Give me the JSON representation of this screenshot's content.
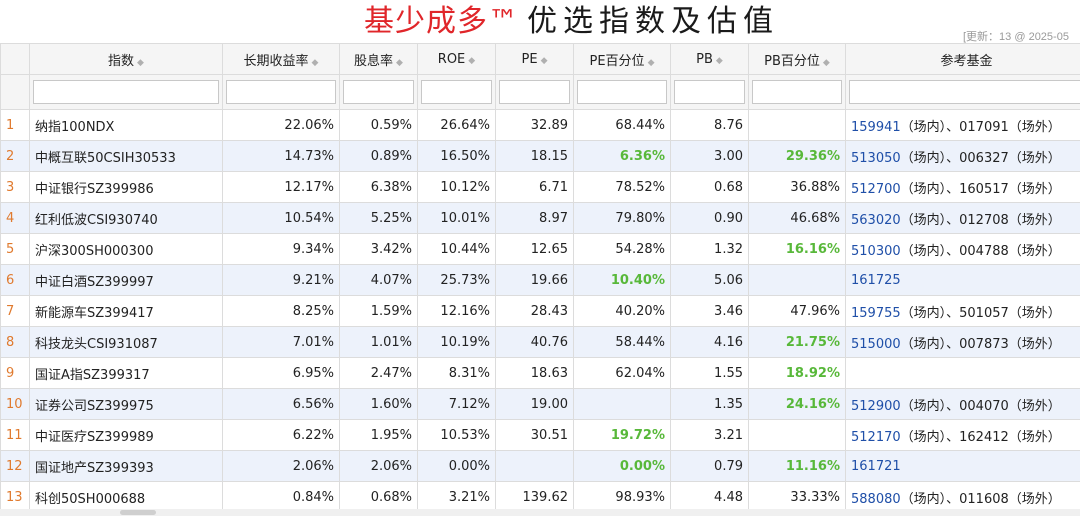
{
  "header": {
    "title_brand": "基少成多™",
    "title_main": "优选指数及估值",
    "update_note": "[更新：13 @ 2025-05"
  },
  "columns": [
    {
      "key": "index",
      "label": "指数"
    },
    {
      "key": "return",
      "label": "长期收益率"
    },
    {
      "key": "dividend",
      "label": "股息率"
    },
    {
      "key": "roe",
      "label": "ROE"
    },
    {
      "key": "pe",
      "label": "PE"
    },
    {
      "key": "pe_pct",
      "label": "PE百分位"
    },
    {
      "key": "pb",
      "label": "PB"
    },
    {
      "key": "pb_pct",
      "label": "PB百分位"
    },
    {
      "key": "funds",
      "label": "参考基金"
    }
  ],
  "colors": {
    "highlight": "#58b83a",
    "fund_code": "#1f4fa8",
    "row_number": "#e07a2e",
    "brand": "#e0262a"
  },
  "rows": [
    {
      "n": "1",
      "index": "纳指100NDX",
      "return": "22.06%",
      "dividend": "0.59%",
      "roe": "26.64%",
      "pe": "32.89",
      "pe_pct": "68.44%",
      "pe_pct_hl": false,
      "pb": "8.76",
      "pb_pct": "",
      "pb_pct_hl": false,
      "fund_code": "159941",
      "fund_rest": "（场内）、017091（场外）"
    },
    {
      "n": "2",
      "index": "中概互联50CSIH30533",
      "return": "14.73%",
      "dividend": "0.89%",
      "roe": "16.50%",
      "pe": "18.15",
      "pe_pct": "6.36%",
      "pe_pct_hl": true,
      "pb": "3.00",
      "pb_pct": "29.36%",
      "pb_pct_hl": true,
      "fund_code": "513050",
      "fund_rest": "（场内）、006327（场外）"
    },
    {
      "n": "3",
      "index": "中证银行SZ399986",
      "return": "12.17%",
      "dividend": "6.38%",
      "roe": "10.12%",
      "pe": "6.71",
      "pe_pct": "78.52%",
      "pe_pct_hl": false,
      "pb": "0.68",
      "pb_pct": "36.88%",
      "pb_pct_hl": false,
      "fund_code": "512700",
      "fund_rest": "（场内）、160517（场外）"
    },
    {
      "n": "4",
      "index": "红利低波CSI930740",
      "return": "10.54%",
      "dividend": "5.25%",
      "roe": "10.01%",
      "pe": "8.97",
      "pe_pct": "79.80%",
      "pe_pct_hl": false,
      "pb": "0.90",
      "pb_pct": "46.68%",
      "pb_pct_hl": false,
      "fund_code": "563020",
      "fund_rest": "（场内）、012708（场外）"
    },
    {
      "n": "5",
      "index": "沪深300SH000300",
      "return": "9.34%",
      "dividend": "3.42%",
      "roe": "10.44%",
      "pe": "12.65",
      "pe_pct": "54.28%",
      "pe_pct_hl": false,
      "pb": "1.32",
      "pb_pct": "16.16%",
      "pb_pct_hl": true,
      "fund_code": "510300",
      "fund_rest": "（场内）、004788（场外）"
    },
    {
      "n": "6",
      "index": "中证白酒SZ399997",
      "return": "9.21%",
      "dividend": "4.07%",
      "roe": "25.73%",
      "pe": "19.66",
      "pe_pct": "10.40%",
      "pe_pct_hl": true,
      "pb": "5.06",
      "pb_pct": "",
      "pb_pct_hl": false,
      "fund_code": "161725",
      "fund_rest": ""
    },
    {
      "n": "7",
      "index": "新能源车SZ399417",
      "return": "8.25%",
      "dividend": "1.59%",
      "roe": "12.16%",
      "pe": "28.43",
      "pe_pct": "40.20%",
      "pe_pct_hl": false,
      "pb": "3.46",
      "pb_pct": "47.96%",
      "pb_pct_hl": false,
      "fund_code": "159755",
      "fund_rest": "（场内）、501057（场外）"
    },
    {
      "n": "8",
      "index": "科技龙头CSI931087",
      "return": "7.01%",
      "dividend": "1.01%",
      "roe": "10.19%",
      "pe": "40.76",
      "pe_pct": "58.44%",
      "pe_pct_hl": false,
      "pb": "4.16",
      "pb_pct": "21.75%",
      "pb_pct_hl": true,
      "fund_code": "515000",
      "fund_rest": "（场内）、007873（场外）"
    },
    {
      "n": "9",
      "index": "国证A指SZ399317",
      "return": "6.95%",
      "dividend": "2.47%",
      "roe": "8.31%",
      "pe": "18.63",
      "pe_pct": "62.04%",
      "pe_pct_hl": false,
      "pb": "1.55",
      "pb_pct": "18.92%",
      "pb_pct_hl": true,
      "fund_code": "",
      "fund_rest": ""
    },
    {
      "n": "10",
      "index": "证券公司SZ399975",
      "return": "6.56%",
      "dividend": "1.60%",
      "roe": "7.12%",
      "pe": "19.00",
      "pe_pct": "",
      "pe_pct_hl": false,
      "pb": "1.35",
      "pb_pct": "24.16%",
      "pb_pct_hl": true,
      "fund_code": "512900",
      "fund_rest": "（场内）、004070（场外）"
    },
    {
      "n": "11",
      "index": "中证医疗SZ399989",
      "return": "6.22%",
      "dividend": "1.95%",
      "roe": "10.53%",
      "pe": "30.51",
      "pe_pct": "19.72%",
      "pe_pct_hl": true,
      "pb": "3.21",
      "pb_pct": "",
      "pb_pct_hl": false,
      "fund_code": "512170",
      "fund_rest": "（场内）、162412（场外）"
    },
    {
      "n": "12",
      "index": "国证地产SZ399393",
      "return": "2.06%",
      "dividend": "2.06%",
      "roe": "0.00%",
      "pe": "",
      "pe_pct": "0.00%",
      "pe_pct_hl": true,
      "pb": "0.79",
      "pb_pct": "11.16%",
      "pb_pct_hl": true,
      "fund_code": "161721",
      "fund_rest": ""
    },
    {
      "n": "13",
      "index": "科创50SH000688",
      "return": "0.84%",
      "dividend": "0.68%",
      "roe": "3.21%",
      "pe": "139.62",
      "pe_pct": "98.93%",
      "pe_pct_hl": false,
      "pb": "4.48",
      "pb_pct": "33.33%",
      "pb_pct_hl": false,
      "fund_code": "588080",
      "fund_rest": "（场内）、011608（场外）"
    }
  ]
}
